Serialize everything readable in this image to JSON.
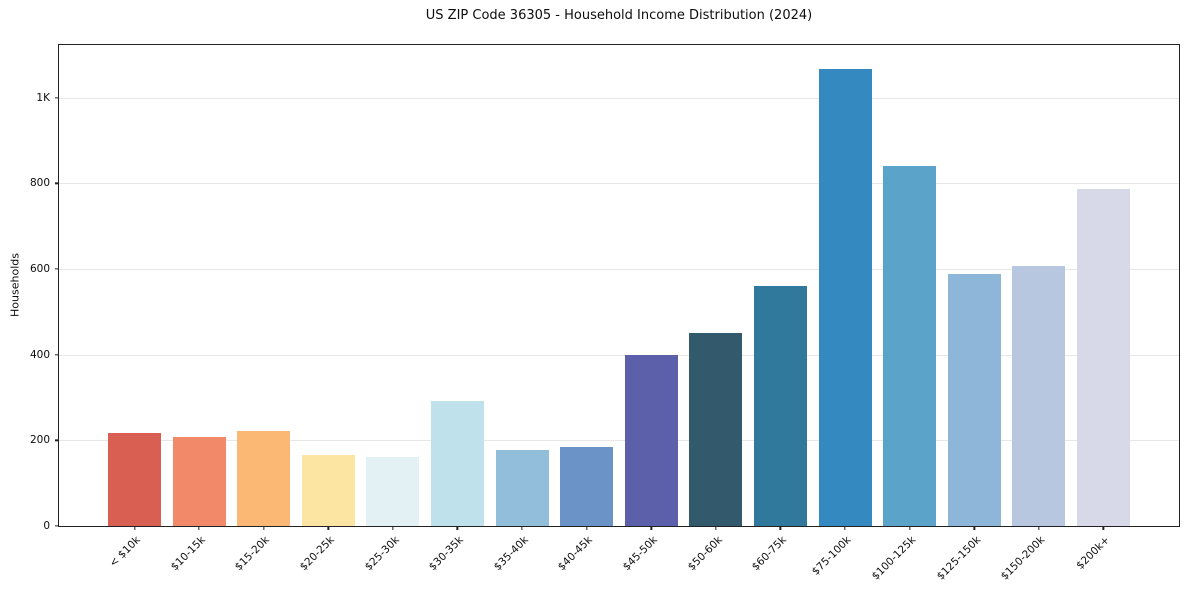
{
  "chart_data": {
    "type": "bar",
    "title": "US ZIP Code 36305 - Household Income Distribution (2024)",
    "xlabel": "",
    "ylabel": "Households",
    "categories": [
      "< $10k",
      "$10-15k",
      "$15-20k",
      "$20-25k",
      "$25-30k",
      "$30-35k",
      "$35-40k",
      "$40-45k",
      "$45-50k",
      "$50-60k",
      "$60-75k",
      "$75-100k",
      "$100-125k",
      "$125-150k",
      "$150-200k",
      "$200k+"
    ],
    "values": [
      218,
      208,
      221,
      165,
      160,
      291,
      177,
      185,
      400,
      450,
      560,
      1066,
      841,
      588,
      607,
      788
    ],
    "bar_colors": [
      "#d95f52",
      "#f28a6a",
      "#fbb875",
      "#fce5a2",
      "#e3f0f4",
      "#bee1ec",
      "#93bedb",
      "#6c93c8",
      "#5c5fa9",
      "#33596d",
      "#31799c",
      "#3389c0",
      "#5ba3c9",
      "#8db6d8",
      "#b7c7e0",
      "#d7d9e8"
    ],
    "ylim": [
      0,
      1123
    ],
    "yticks": [
      {
        "value": 0,
        "label": "0"
      },
      {
        "value": 200,
        "label": "200"
      },
      {
        "value": 400,
        "label": "400"
      },
      {
        "value": 600,
        "label": "600"
      },
      {
        "value": 800,
        "label": "800"
      },
      {
        "value": 1000,
        "label": "1K"
      }
    ],
    "grid": "horizontal",
    "legend": "none",
    "background_color": "#ffffff",
    "spine_color": "#222222",
    "gridline_color": "#e7e7e7"
  }
}
